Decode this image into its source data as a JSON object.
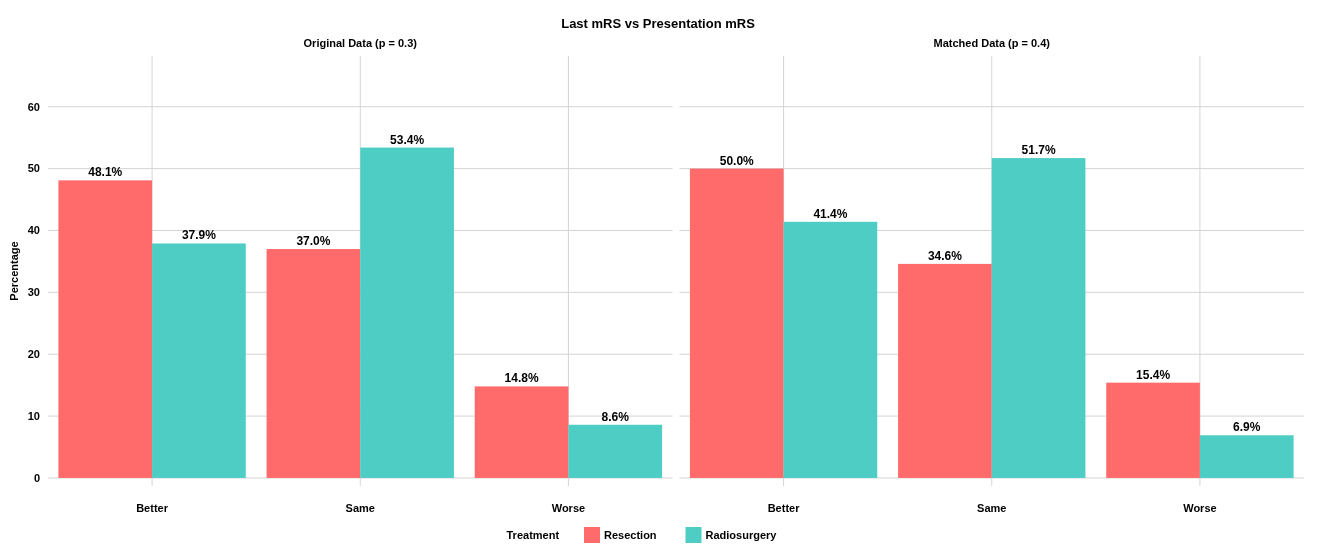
{
  "chart_data": [
    {
      "type": "bar",
      "title": "Last mRS vs Presentation mRS",
      "subtitle": "Original Data (p = 0.3)",
      "ylabel": "Percentage",
      "legend_title": "Treatment",
      "legend": "bottom",
      "grid": true,
      "categories": [
        "Better",
        "Same",
        "Worse"
      ],
      "ylim": [
        -1.3,
        68.2
      ],
      "yticks": [
        0,
        10,
        20,
        30,
        40,
        50,
        60
      ],
      "series": [
        {
          "name": "Resection",
          "color": "#ff6b6b",
          "values": [
            48.1,
            37.0,
            14.8
          ],
          "value_labels": [
            "48.1%",
            "37.0%",
            "14.8%"
          ]
        },
        {
          "name": "Radiosurgery",
          "color": "#4ecdc4",
          "values": [
            37.9,
            53.4,
            8.6
          ],
          "value_labels": [
            "37.9%",
            "53.4%",
            "8.6%"
          ]
        }
      ]
    },
    {
      "type": "bar",
      "subtitle": "Matched Data (p = 0.4)",
      "grid": true,
      "tick_labels": "x",
      "categories": [
        "Better",
        "Same",
        "Worse"
      ],
      "ylim": [
        -1.3,
        68.2
      ],
      "yticks": [
        0,
        10,
        20,
        30,
        40,
        50,
        60
      ],
      "series": [
        {
          "color": "#ff6b6b",
          "values": [
            50.0,
            34.6,
            15.4
          ],
          "value_labels": [
            "50.0%",
            "34.6%",
            "15.4%"
          ]
        },
        {
          "color": "#4ecdc4",
          "values": [
            41.4,
            51.7,
            6.9
          ],
          "value_labels": [
            "41.4%",
            "51.7%",
            "6.9%"
          ]
        }
      ]
    }
  ]
}
